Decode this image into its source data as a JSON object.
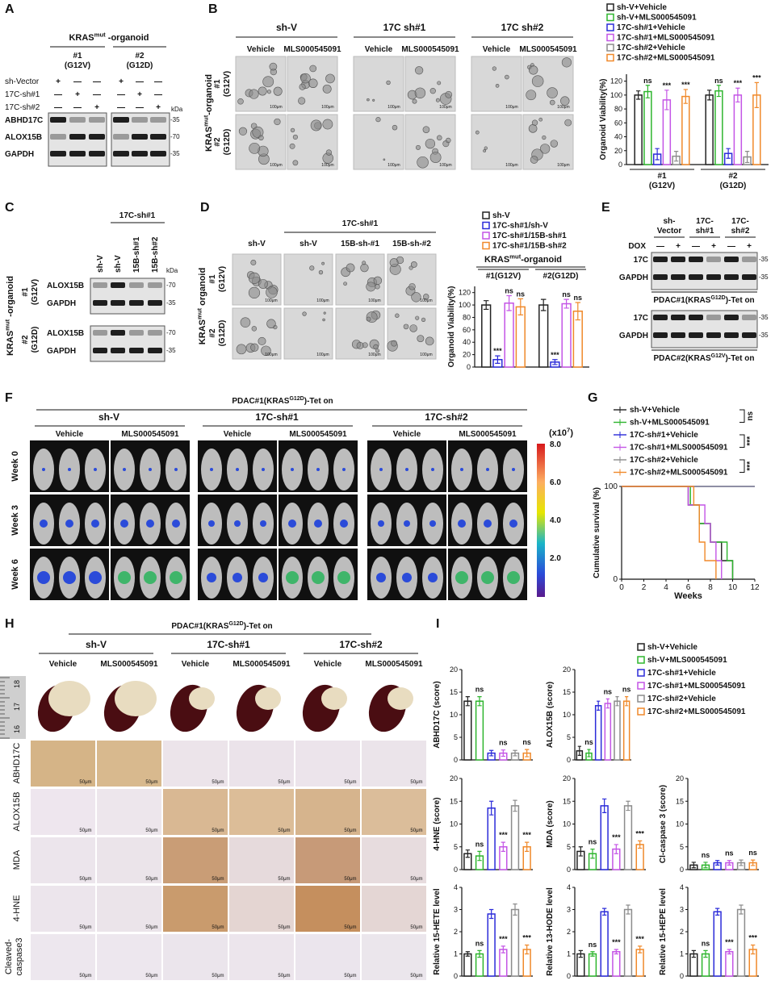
{
  "panels": {
    "A": {
      "label": "A",
      "title": {
        "base": "KRAS",
        "sup": "mut",
        "tail": " -organoid"
      },
      "groups": [
        {
          "name": "#1",
          "sub": "(G12V)"
        },
        {
          "name": "#2",
          "sub": "(G12D)"
        }
      ],
      "rows": [
        "sh-Vector",
        "17C-sh#1",
        "17C-sh#2"
      ],
      "signs": [
        [
          "+",
          "—",
          "—"
        ],
        [
          "—",
          "+",
          "—"
        ],
        [
          "—",
          "—",
          "+"
        ]
      ],
      "blots": [
        "ABHD17C",
        "ALOX15B",
        "GAPDH"
      ],
      "markers": [
        "-35",
        "-70",
        "-35"
      ],
      "kda": "kDa"
    },
    "B": {
      "label": "B",
      "groups": [
        "sh-V",
        "17C sh#1",
        "17C sh#2"
      ],
      "conditions": [
        "Vehicle",
        "MLS000545091"
      ],
      "side": {
        "base": "KRAS",
        "sup": "mut",
        "tail": "-organoid"
      },
      "rows": [
        {
          "name": "#1",
          "sub": "(G12V)"
        },
        {
          "name": "#2",
          "sub": "(G12D)"
        }
      ],
      "scale": "100μm"
    },
    "C": {
      "label": "C",
      "header": "17C-sh#1",
      "lanes": [
        "sh-V",
        "sh-V",
        "15B-sh#1",
        "15B-sh#2"
      ],
      "kda": "kDa",
      "side": {
        "base": "KRAS",
        "sup": "mut",
        "tail": " -organoid"
      },
      "rows": [
        {
          "name": "#1",
          "sub": "(G12V)"
        },
        {
          "name": "#2",
          "sub": "(G12D)"
        }
      ],
      "blots": [
        "ALOX15B",
        "GAPDH"
      ],
      "markers": [
        "-70",
        "-35"
      ]
    },
    "D": {
      "label": "D",
      "header": "17C-sh#1",
      "cols": [
        "sh-V",
        "sh-V",
        "15B-sh-#1",
        "15B-sh-#2"
      ],
      "side": {
        "base": "KRAS",
        "sup": "mut",
        "tail": " organoid"
      },
      "rows": [
        {
          "name": "#1",
          "sub": "(G12V)"
        },
        {
          "name": "#2",
          "sub": "(G12D)"
        }
      ],
      "scale": "100μm"
    },
    "E": {
      "label": "E",
      "cols": [
        {
          "a": "sh-",
          "b": "Vector"
        },
        {
          "a": "17C-",
          "b": "sh#1"
        },
        {
          "a": "17C-",
          "b": "sh#2"
        }
      ],
      "dox": "DOX",
      "signs": [
        "—",
        "+"
      ],
      "blots": [
        "17C",
        "GAPDH"
      ],
      "marker": "-35",
      "captions": [
        {
          "base": "PDAC#1(KRAS",
          "sup": "G12D",
          "tail": ")-Tet on"
        },
        {
          "base": "PDAC#2(KRAS",
          "sup": "G12V",
          "tail": ")-Tet on"
        }
      ]
    },
    "F": {
      "label": "F",
      "title": {
        "base": "PDAC#1(KRAS",
        "sup": "G12D",
        "tail": ")-Tet on"
      },
      "groups": [
        "sh-V",
        "17C-sh#1",
        "17C-sh#2"
      ],
      "conditions": [
        "Vehicle",
        "MLS000545091"
      ],
      "rows": [
        "Week 0",
        "Week 3",
        "Week 6"
      ],
      "colorbar": {
        "unit": {
          "base": "(x10",
          "sup": "7",
          "tail": ")"
        },
        "ticks": [
          "8.0",
          "6.0",
          "4.0",
          "2.0"
        ]
      }
    },
    "G": {
      "label": "G"
    },
    "H": {
      "label": "H",
      "title": {
        "base": "PDAC#1(KRAS",
        "sup": "G12D",
        "tail": ")-Tet on"
      },
      "groups": [
        "sh-V",
        "17C-sh#1",
        "17C-sh#2"
      ],
      "conditions": [
        "Vehicle",
        "MLS000545091"
      ],
      "rows": [
        "ABHD17C",
        "ALOX15B",
        "MDA",
        "4-HNE"
      ],
      "last_row": {
        "a": "Cleaved-",
        "b": "caspase3"
      },
      "ruler": [
        "18",
        "17",
        "16"
      ],
      "scale": "50μm"
    },
    "I": {
      "label": "I",
      "legend": [
        {
          "name": "sh-V+Vehicle",
          "color": "#222222"
        },
        {
          "name": "sh-V+MLS000545091",
          "color": "#2db52d"
        },
        {
          "name": "17C-sh#1+Vehicle",
          "color": "#2b2bd9"
        },
        {
          "name": "17C-sh#1+MLS000545091",
          "color": "#c455e6"
        },
        {
          "name": "17C-sh#2+Vehicle",
          "color": "#8c8c8c"
        },
        {
          "name": "17C-sh#2+MLS000545091",
          "color": "#f0892a"
        }
      ]
    }
  },
  "chart_data": [
    {
      "type": "bar",
      "ylabel": "Organoid Viability(%)",
      "ylim": [
        0,
        130
      ],
      "yticks": [
        0,
        20,
        40,
        60,
        80,
        100,
        120
      ],
      "categories": [
        "#1",
        "#2"
      ],
      "category_subs": [
        "(G12V)",
        "(G12D)"
      ],
      "series": [
        {
          "name": "sh-V+Vehicle",
          "color": "#222222",
          "values": [
            100,
            100
          ],
          "errors": [
            6,
            7
          ]
        },
        {
          "name": "sh-V+MLS000545091",
          "color": "#2db52d",
          "values": [
            105,
            106
          ],
          "errors": [
            9,
            8
          ]
        },
        {
          "name": "17C-sh#1+Vehicle",
          "color": "#2b2bd9",
          "values": [
            15,
            16
          ],
          "errors": [
            8,
            7
          ]
        },
        {
          "name": "17C-sh#1+MLS000545091",
          "color": "#c455e6",
          "values": [
            93,
            100
          ],
          "errors": [
            14,
            10
          ]
        },
        {
          "name": "17C-sh#2+Vehicle",
          "color": "#8c8c8c",
          "values": [
            12,
            11
          ],
          "errors": [
            7,
            8
          ]
        },
        {
          "name": "17C-sh#2+MLS000545091",
          "color": "#f0892a",
          "values": [
            98,
            100
          ],
          "errors": [
            10,
            18
          ]
        }
      ],
      "annotations": [
        {
          "category": 0,
          "series": 1,
          "text": "ns"
        },
        {
          "category": 0,
          "series": 3,
          "text": "***"
        },
        {
          "category": 0,
          "series": 5,
          "text": "***"
        },
        {
          "category": 1,
          "series": 1,
          "text": "ns"
        },
        {
          "category": 1,
          "series": 3,
          "text": "***"
        },
        {
          "category": 1,
          "series": 5,
          "text": "***"
        }
      ]
    },
    {
      "type": "bar",
      "title": {
        "base": "KRAS",
        "sup": "mut",
        "tail": "-organoid"
      },
      "ylabel": "Organoid Viability(%)",
      "ylim": [
        0,
        130
      ],
      "yticks": [
        0,
        20,
        40,
        60,
        80,
        100,
        120
      ],
      "categories": [
        "#1(G12V)",
        "#2(G12D)"
      ],
      "series": [
        {
          "name": "sh-V",
          "color": "#222222",
          "values": [
            100,
            100
          ],
          "errors": [
            7,
            9
          ]
        },
        {
          "name": "17C-sh#1/sh-V",
          "color": "#2b2bd9",
          "values": [
            12,
            8
          ],
          "errors": [
            6,
            4
          ]
        },
        {
          "name": "17C-sh#1/15B-sh#1",
          "color": "#c455e6",
          "values": [
            103,
            102
          ],
          "errors": [
            12,
            7
          ]
        },
        {
          "name": "17C-sh#1/15B-sh#2",
          "color": "#f0892a",
          "values": [
            97,
            90
          ],
          "errors": [
            13,
            14
          ]
        }
      ],
      "annotations": [
        {
          "category": 0,
          "series": 1,
          "text": "***"
        },
        {
          "category": 0,
          "series": 2,
          "text": "ns"
        },
        {
          "category": 0,
          "series": 3,
          "text": "ns"
        },
        {
          "category": 1,
          "series": 1,
          "text": "***"
        },
        {
          "category": 1,
          "series": 2,
          "text": "ns"
        },
        {
          "category": 1,
          "series": 3,
          "text": "ns"
        }
      ]
    },
    {
      "type": "line",
      "xlabel": "Weeks",
      "ylabel": "Cumulative survival (%)",
      "xlim": [
        0,
        12
      ],
      "xticks": [
        0,
        2,
        4,
        6,
        8,
        10,
        12
      ],
      "ylim": [
        0,
        100
      ],
      "yticks": [
        0,
        100
      ],
      "series": [
        {
          "name": "sh-V+Vehicle",
          "color": "#222222",
          "x": [
            0,
            6,
            6,
            7,
            7,
            8,
            8,
            9,
            9,
            10,
            10
          ],
          "values": [
            100,
            100,
            80,
            80,
            60,
            60,
            40,
            40,
            20,
            20,
            0
          ]
        },
        {
          "name": "sh-V+MLS000545091",
          "color": "#2db52d",
          "x": [
            0,
            6.2,
            6.2,
            7,
            7,
            8,
            8,
            9.5,
            9.5,
            10,
            10
          ],
          "values": [
            100,
            100,
            80,
            80,
            60,
            60,
            40,
            40,
            20,
            20,
            0
          ]
        },
        {
          "name": "17C-sh#1+Vehicle",
          "color": "#2b2bd9",
          "x": [
            0,
            12
          ],
          "values": [
            100,
            100
          ]
        },
        {
          "name": "17C-sh#1+MLS000545091",
          "color": "#c455e6",
          "x": [
            0,
            6,
            6,
            7.5,
            7.5,
            8,
            8,
            8.5,
            8.5,
            9,
            9
          ],
          "values": [
            100,
            100,
            80,
            80,
            60,
            60,
            40,
            40,
            20,
            20,
            0
          ]
        },
        {
          "name": "17C-sh#2+Vehicle",
          "color": "#8c8c8c",
          "x": [
            0,
            12
          ],
          "values": [
            100,
            100
          ]
        },
        {
          "name": "17C-sh#2+MLS000545091",
          "color": "#f0892a",
          "x": [
            0,
            6.5,
            6.5,
            7,
            7,
            7.5,
            7.5,
            8.5,
            8.5
          ],
          "values": [
            100,
            100,
            80,
            80,
            40,
            40,
            20,
            20,
            0
          ]
        }
      ],
      "comparisons": [
        {
          "series": [
            0,
            1
          ],
          "text": "ns"
        },
        {
          "series": [
            2,
            3
          ],
          "text": "***"
        },
        {
          "series": [
            4,
            5
          ],
          "text": "***"
        }
      ]
    },
    {
      "type": "bar",
      "ylabel": "ABHD17C (score)",
      "ylim": [
        0,
        20
      ],
      "yticks": [
        0,
        5,
        10,
        15,
        20
      ],
      "values": [
        13,
        13,
        1.5,
        1.5,
        1.5,
        1.5
      ],
      "errors": [
        1,
        1,
        0.6,
        0.7,
        0.6,
        0.8
      ],
      "annotations": [
        {
          "bar": 1,
          "text": "ns"
        },
        {
          "bar": 3,
          "text": "ns"
        },
        {
          "bar": 5,
          "text": "ns"
        }
      ]
    },
    {
      "type": "bar",
      "ylabel": "ALOX15B (score)",
      "ylim": [
        0,
        20
      ],
      "yticks": [
        0,
        5,
        10,
        15,
        20
      ],
      "values": [
        2,
        1.5,
        12,
        12.5,
        13,
        13
      ],
      "errors": [
        1,
        0.8,
        1,
        1,
        1,
        1
      ],
      "annotations": [
        {
          "bar": 1,
          "text": "ns"
        },
        {
          "bar": 3,
          "text": "ns"
        },
        {
          "bar": 5,
          "text": "ns"
        }
      ]
    },
    {
      "type": "bar",
      "ylabel": "4-HNE (score)",
      "ylim": [
        0,
        20
      ],
      "yticks": [
        0,
        5,
        10,
        15,
        20
      ],
      "values": [
        3.5,
        3,
        13.5,
        5,
        14,
        5
      ],
      "errors": [
        0.8,
        1,
        1.5,
        1,
        1.2,
        1
      ],
      "annotations": [
        {
          "bar": 1,
          "text": "ns"
        },
        {
          "bar": 3,
          "text": "***"
        },
        {
          "bar": 5,
          "text": "***"
        }
      ]
    },
    {
      "type": "bar",
      "ylabel": "MDA (score)",
      "ylim": [
        0,
        20
      ],
      "yticks": [
        0,
        5,
        10,
        15,
        20
      ],
      "values": [
        4,
        3.5,
        14,
        4.5,
        14,
        5.5
      ],
      "errors": [
        1,
        1,
        1.5,
        1,
        1,
        0.8
      ],
      "annotations": [
        {
          "bar": 1,
          "text": "ns"
        },
        {
          "bar": 3,
          "text": "***"
        },
        {
          "bar": 5,
          "text": "***"
        }
      ]
    },
    {
      "type": "bar",
      "ylabel": "Cl-caspase 3 (score)",
      "ylim": [
        0,
        20
      ],
      "yticks": [
        0,
        5,
        10,
        15,
        20
      ],
      "values": [
        1,
        1,
        1.5,
        1.5,
        1.5,
        1.5
      ],
      "errors": [
        0.6,
        0.6,
        0.5,
        0.5,
        0.6,
        0.6
      ],
      "annotations": [
        {
          "bar": 1,
          "text": "ns"
        },
        {
          "bar": 3,
          "text": "ns"
        },
        {
          "bar": 5,
          "text": "ns"
        }
      ]
    },
    {
      "type": "bar",
      "ylabel": "Relative 15-HETE level",
      "ylim": [
        0,
        4
      ],
      "yticks": [
        0,
        1,
        2,
        3,
        4
      ],
      "values": [
        1,
        1,
        2.8,
        1.2,
        3,
        1.2
      ],
      "errors": [
        0.1,
        0.15,
        0.2,
        0.15,
        0.25,
        0.2
      ],
      "annotations": [
        {
          "bar": 1,
          "text": "ns"
        },
        {
          "bar": 3,
          "text": "***"
        },
        {
          "bar": 5,
          "text": "***"
        }
      ]
    },
    {
      "type": "bar",
      "ylabel": "Relative 13-HODE level",
      "ylim": [
        0,
        4
      ],
      "yticks": [
        0,
        1,
        2,
        3,
        4
      ],
      "values": [
        1,
        1,
        2.9,
        1.1,
        3,
        1.2
      ],
      "errors": [
        0.15,
        0.1,
        0.15,
        0.1,
        0.2,
        0.15
      ],
      "annotations": [
        {
          "bar": 1,
          "text": "ns"
        },
        {
          "bar": 3,
          "text": "***"
        },
        {
          "bar": 5,
          "text": "***"
        }
      ]
    },
    {
      "type": "bar",
      "ylabel": "Relative 15-HEPE level",
      "ylim": [
        0,
        4
      ],
      "yticks": [
        0,
        1,
        2,
        3,
        4
      ],
      "values": [
        1,
        1,
        2.9,
        1.1,
        3,
        1.2
      ],
      "errors": [
        0.15,
        0.15,
        0.15,
        0.1,
        0.2,
        0.2
      ],
      "annotations": [
        {
          "bar": 1,
          "text": "ns"
        },
        {
          "bar": 3,
          "text": "***"
        },
        {
          "bar": 5,
          "text": "***"
        }
      ]
    }
  ]
}
